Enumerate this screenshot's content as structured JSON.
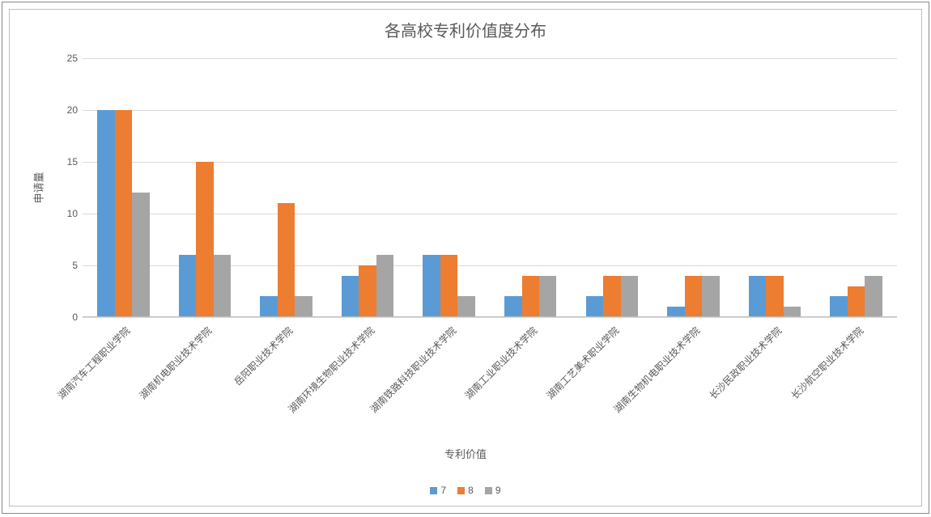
{
  "chart": {
    "type": "bar-grouped",
    "title": "各高校专利价值度分布",
    "title_fontsize": 20,
    "title_color": "#595959",
    "background_color": "#ffffff",
    "outer_border_color": "#888888",
    "inner_border_color": "#bfbfbf",
    "grid_color": "#d9d9d9",
    "axis_line_color": "#bfbfbf",
    "label_color": "#595959",
    "label_fontsize": 12,
    "y_axis": {
      "title": "申请量",
      "min": 0,
      "max": 25,
      "tick_step": 5,
      "ticks": [
        0,
        5,
        10,
        15,
        20,
        25
      ]
    },
    "x_axis": {
      "title": "专利价值",
      "label_rotation_deg": -45
    },
    "series": [
      {
        "name": "7",
        "color": "#5b9bd5"
      },
      {
        "name": "8",
        "color": "#ed7d31"
      },
      {
        "name": "9",
        "color": "#a5a5a5"
      }
    ],
    "categories": [
      "湖南汽车工程职业学院",
      "湖南机电职业技术学院",
      "岳阳职业技术学院",
      "湖南环境生物职业技术学院",
      "湖南铁路科技职业技术学院",
      "湖南工业职业技术学院",
      "湖南工艺美术职业学院",
      "湖南生物机电职业技术学院",
      "长沙民政职业技术学院",
      "长沙航空职业技术学院"
    ],
    "data": [
      [
        20,
        20,
        12
      ],
      [
        6,
        15,
        6
      ],
      [
        2,
        11,
        2
      ],
      [
        4,
        5,
        6
      ],
      [
        6,
        6,
        2
      ],
      [
        2,
        4,
        4
      ],
      [
        2,
        4,
        4
      ],
      [
        1,
        4,
        4
      ],
      [
        4,
        4,
        1
      ],
      [
        2,
        3,
        4
      ]
    ],
    "bar_group_inner_width_pct": 64,
    "legend_position": "bottom"
  }
}
